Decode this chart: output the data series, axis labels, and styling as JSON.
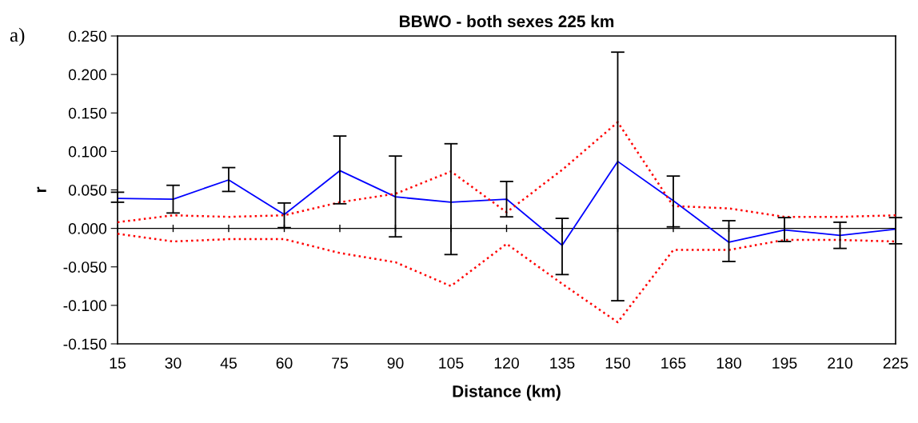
{
  "chart_data": {
    "type": "line",
    "title": "BBWO - both sexes 225 km",
    "xlabel": "Distance (km)",
    "ylabel": "r",
    "annotations": [
      "a)"
    ],
    "x": [
      15,
      30,
      45,
      60,
      75,
      90,
      105,
      120,
      135,
      150,
      165,
      180,
      195,
      210,
      225
    ],
    "xlim": [
      15,
      225
    ],
    "xticks": [
      15,
      30,
      45,
      60,
      75,
      90,
      105,
      120,
      135,
      150,
      165,
      180,
      195,
      210,
      225
    ],
    "ylim": [
      -0.15,
      0.25
    ],
    "yticks": [
      {
        "value": -0.15,
        "label": "-0.150"
      },
      {
        "value": -0.1,
        "label": "-0.100"
      },
      {
        "value": -0.05,
        "label": "-0.050"
      },
      {
        "value": 0,
        "label": "0.000"
      },
      {
        "value": 0.05,
        "label": "0.050"
      },
      {
        "value": 0.1,
        "label": "0.100"
      },
      {
        "value": 0.15,
        "label": "0.150"
      },
      {
        "value": 0.2,
        "label": "0.200"
      },
      {
        "value": 0.25,
        "label": "0.250"
      }
    ],
    "ref_lines": [
      {
        "axis": "y",
        "value": 0,
        "color": "#000000"
      }
    ],
    "grid": false,
    "series": [
      {
        "color": "#0000ff",
        "line_style": "solid",
        "values": [
          0.039,
          0.038,
          0.063,
          0.018,
          0.075,
          0.041,
          0.034,
          0.038,
          -0.022,
          0.087,
          0.036,
          -0.018,
          -0.002,
          -0.009,
          -0.001
        ],
        "errors": [
          [
            0.034,
            0.047
          ],
          [
            0.02,
            0.056
          ],
          [
            0.048,
            0.079
          ],
          [
            0.001,
            0.033
          ],
          [
            0.032,
            0.12
          ],
          [
            -0.011,
            0.094
          ],
          [
            -0.034,
            0.11
          ],
          [
            0.015,
            0.061
          ],
          [
            -0.06,
            0.013
          ],
          [
            -0.094,
            0.229
          ],
          [
            0.002,
            0.068
          ],
          [
            -0.043,
            0.01
          ],
          [
            -0.017,
            0.014
          ],
          [
            -0.026,
            0.008
          ],
          [
            -0.02,
            0.014
          ]
        ]
      },
      {
        "color": "#ff0000",
        "line_style": "dotted",
        "values": [
          0.008,
          0.017,
          0.015,
          0.017,
          0.034,
          0.045,
          0.074,
          0.021,
          0.076,
          0.138,
          0.029,
          0.026,
          0.015,
          0.015,
          0.017
        ]
      },
      {
        "color": "#ff0000",
        "line_style": "dotted",
        "values": [
          -0.007,
          -0.017,
          -0.014,
          -0.014,
          -0.032,
          -0.044,
          -0.075,
          -0.02,
          -0.072,
          -0.122,
          -0.028,
          -0.028,
          -0.015,
          -0.015,
          -0.017
        ]
      }
    ]
  }
}
